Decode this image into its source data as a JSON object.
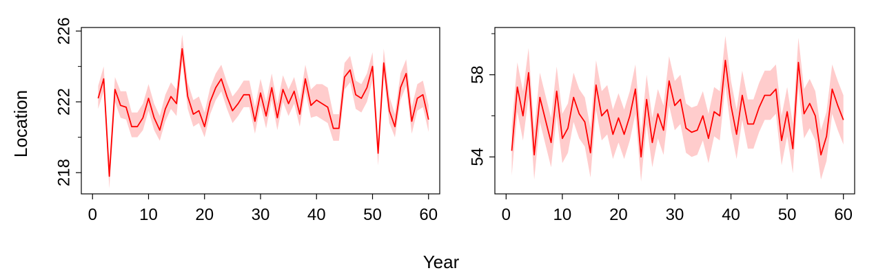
{
  "figure": {
    "xlabel": "Year",
    "ylabel": "Location",
    "line_color": "#ff0000",
    "band_color": "#ffcccc"
  },
  "chart_data": [
    {
      "type": "line",
      "title": "",
      "xlim": [
        -2,
        62
      ],
      "ylim": [
        216.8,
        226.2
      ],
      "xticks": [
        0,
        10,
        20,
        30,
        40,
        50,
        60
      ],
      "xtick_labels": [
        "0",
        "10",
        "20",
        "30",
        "40",
        "50",
        "60"
      ],
      "yticks": [
        218,
        222,
        226
      ],
      "ytick_labels": [
        "218",
        "222",
        "226"
      ],
      "yminor": [
        220,
        224
      ],
      "grid": false,
      "series": [
        {
          "x": [
            1,
            2,
            3,
            4,
            5,
            6,
            7,
            8,
            9,
            10,
            11,
            12,
            13,
            14,
            15,
            16,
            17,
            18,
            19,
            20,
            21,
            22,
            23,
            24,
            25,
            26,
            27,
            28,
            29,
            30,
            31,
            32,
            33,
            34,
            35,
            36,
            37,
            38,
            39,
            40,
            41,
            42,
            43,
            44,
            45,
            46,
            47,
            48,
            49,
            50,
            51,
            52,
            53,
            54,
            55,
            56,
            57,
            58,
            59,
            60
          ],
          "y": [
            222.2,
            223.3,
            217.8,
            222.7,
            221.8,
            221.7,
            220.6,
            220.6,
            221.1,
            222.2,
            221.1,
            220.4,
            221.6,
            222.3,
            221.9,
            225.0,
            222.3,
            221.3,
            221.5,
            220.6,
            222.0,
            222.8,
            223.3,
            222.3,
            221.5,
            221.9,
            222.4,
            222.4,
            220.9,
            222.5,
            221.2,
            222.8,
            221.1,
            222.7,
            221.9,
            222.6,
            221.3,
            223.3,
            221.8,
            222.1,
            221.9,
            221.7,
            220.5,
            220.5,
            223.4,
            223.8,
            222.4,
            222.2,
            222.8,
            224.0,
            219.1,
            224.2,
            221.5,
            220.6,
            222.8,
            223.6,
            220.9,
            222.2,
            222.4,
            221.0
          ],
          "lower": [
            221.6,
            222.6,
            217.1,
            222.0,
            221.1,
            221.0,
            220.0,
            220.0,
            220.4,
            221.5,
            220.4,
            219.8,
            220.9,
            221.6,
            221.2,
            224.3,
            221.6,
            220.6,
            220.8,
            220.0,
            221.3,
            222.1,
            222.6,
            221.6,
            220.8,
            221.2,
            221.7,
            221.7,
            220.2,
            221.8,
            220.5,
            222.1,
            220.4,
            222.0,
            221.2,
            221.9,
            220.6,
            222.6,
            221.1,
            221.2,
            221.0,
            220.8,
            219.8,
            219.8,
            222.7,
            223.1,
            221.6,
            221.4,
            222.0,
            223.2,
            218.4,
            223.5,
            220.8,
            220.0,
            222.1,
            222.9,
            220.2,
            221.5,
            221.7,
            220.3
          ],
          "upper": [
            222.9,
            224.0,
            218.6,
            223.4,
            222.6,
            222.6,
            221.4,
            221.4,
            221.9,
            223.0,
            221.9,
            221.2,
            222.4,
            223.1,
            222.7,
            225.8,
            223.1,
            222.1,
            222.3,
            221.4,
            222.8,
            223.6,
            224.1,
            223.1,
            222.3,
            222.7,
            223.2,
            223.2,
            221.7,
            223.3,
            222.0,
            223.6,
            221.9,
            223.5,
            222.7,
            223.4,
            222.1,
            224.1,
            222.7,
            223.0,
            223.0,
            222.8,
            221.3,
            221.3,
            224.2,
            224.6,
            223.2,
            223.0,
            223.6,
            224.8,
            219.9,
            225.0,
            222.3,
            221.3,
            223.6,
            224.4,
            221.7,
            223.0,
            223.2,
            221.8
          ]
        }
      ]
    },
    {
      "type": "line",
      "title": "",
      "xlim": [
        -2,
        62
      ],
      "ylim": [
        52.2,
        60.3
      ],
      "xticks": [
        0,
        10,
        20,
        30,
        40,
        50,
        60
      ],
      "xtick_labels": [
        "0",
        "10",
        "20",
        "30",
        "40",
        "50",
        "60"
      ],
      "yticks": [
        54,
        58
      ],
      "ytick_labels": [
        "54",
        "58"
      ],
      "yminor": [
        56,
        60
      ],
      "grid": false,
      "series": [
        {
          "x": [
            1,
            2,
            3,
            4,
            5,
            6,
            7,
            8,
            9,
            10,
            11,
            12,
            13,
            14,
            15,
            16,
            17,
            18,
            19,
            20,
            21,
            22,
            23,
            24,
            25,
            26,
            27,
            28,
            29,
            30,
            31,
            32,
            33,
            34,
            35,
            36,
            37,
            38,
            39,
            40,
            41,
            42,
            43,
            44,
            45,
            46,
            47,
            48,
            49,
            50,
            51,
            52,
            53,
            54,
            55,
            56,
            57,
            58,
            59,
            60
          ],
          "y": [
            54.3,
            57.4,
            56.0,
            58.1,
            54.1,
            56.9,
            55.8,
            54.7,
            57.2,
            54.9,
            55.4,
            56.9,
            56.1,
            55.7,
            54.2,
            57.5,
            56.0,
            56.3,
            55.1,
            55.9,
            55.1,
            56.0,
            57.3,
            54.0,
            56.8,
            54.7,
            56.1,
            55.3,
            57.7,
            56.5,
            56.8,
            55.4,
            55.2,
            55.3,
            56.0,
            54.9,
            56.2,
            56.0,
            58.7,
            56.5,
            55.1,
            57.0,
            55.6,
            55.6,
            56.4,
            57.0,
            57.0,
            57.3,
            54.8,
            56.2,
            54.4,
            58.6,
            56.1,
            56.6,
            56.0,
            54.1,
            55.0,
            57.3,
            56.5,
            55.8
          ],
          "lower": [
            53.1,
            56.2,
            54.8,
            56.9,
            52.9,
            55.7,
            54.6,
            53.5,
            56.0,
            53.7,
            54.2,
            55.7,
            54.9,
            54.5,
            53.0,
            56.3,
            54.8,
            55.1,
            53.9,
            54.7,
            53.9,
            54.8,
            56.1,
            52.8,
            55.6,
            53.5,
            54.9,
            54.1,
            56.5,
            55.3,
            55.6,
            54.2,
            54.0,
            54.1,
            54.8,
            53.7,
            55.0,
            54.8,
            57.5,
            55.3,
            53.9,
            55.8,
            54.4,
            54.4,
            55.2,
            55.8,
            55.8,
            56.1,
            53.6,
            55.0,
            53.2,
            57.4,
            54.9,
            55.4,
            54.8,
            52.9,
            53.8,
            56.1,
            55.3,
            54.6
          ],
          "upper": [
            55.5,
            58.6,
            57.2,
            59.3,
            55.3,
            58.1,
            57.0,
            55.9,
            58.4,
            56.1,
            56.6,
            58.1,
            57.3,
            56.9,
            55.4,
            58.7,
            57.2,
            57.5,
            56.3,
            57.1,
            56.3,
            57.2,
            58.5,
            55.2,
            58.0,
            55.9,
            57.3,
            56.5,
            58.9,
            57.7,
            58.0,
            56.6,
            56.4,
            56.5,
            57.2,
            56.1,
            57.4,
            57.2,
            59.9,
            57.7,
            56.3,
            58.2,
            56.8,
            56.8,
            57.6,
            58.2,
            58.2,
            58.5,
            56.0,
            57.4,
            55.6,
            59.8,
            57.3,
            57.8,
            57.2,
            55.3,
            56.2,
            58.5,
            57.7,
            57.0
          ]
        }
      ]
    }
  ]
}
